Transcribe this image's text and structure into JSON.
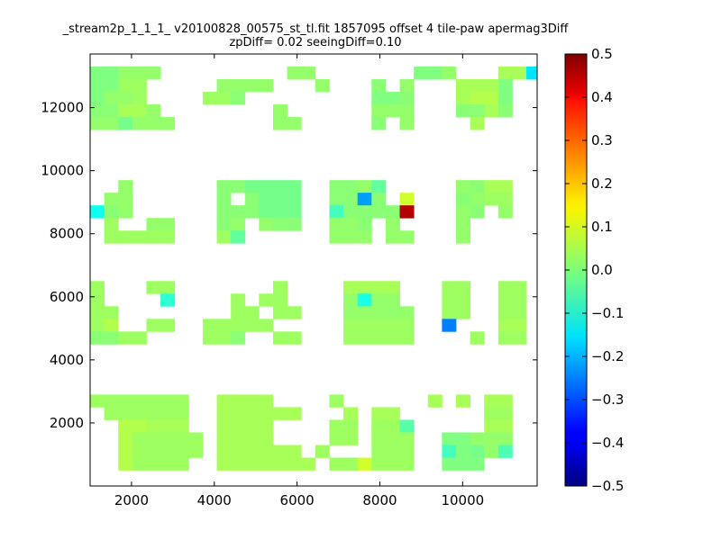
{
  "chart_data": {
    "type": "heatmap",
    "title": "_stream2p_1_1_1_ v20100828_00575_st_tl.fit 1857095 offset 4 tile-paw apermag3Diff",
    "subtitle": "zpDiff= 0.02 seeingDiff=0.10",
    "xlim": [
      1000,
      11800
    ],
    "ylim": [
      0,
      13700
    ],
    "xticks": [
      2000,
      4000,
      6000,
      8000,
      10000
    ],
    "yticks": [
      2000,
      4000,
      6000,
      8000,
      10000,
      12000
    ],
    "colorbar": {
      "min": -0.5,
      "max": 0.5,
      "ticks": [
        0.5,
        0.4,
        0.3,
        0.2,
        0.1,
        0.0,
        -0.1,
        -0.2,
        -0.3,
        -0.4,
        -0.5
      ],
      "tick_labels": [
        "0.5",
        "0.4",
        "0.3",
        "0.2",
        "0.1",
        "0.0",
        "−0.1",
        "−0.2",
        "−0.3",
        "−0.4",
        "−0.5"
      ],
      "colormap": "jet"
    },
    "cell_size": [
      340,
      400
    ],
    "x_origin": 1000,
    "y_top": 13700,
    "grid_rows": [
      ". . . . . . . . . . . . . . . . . . . . . . . . . . . . . . . . ",
      "0.000 0.000 0.020 0.020 0.020 . . . . . . . . . 0.020 0.020 . . . . . . . 0.000 0.000 0.020 . . . 0.040 0.040 -0.150",
      "0.000 0.000 0.030 0.030 . . . . . 0.020 0.020 0.020 0.020 . . . 0.020 . . . 0.010 . 0.020 . . . 0.040 0.040 0.040 0.000",
      "0.000 0.020 0.020 0.030 . . . . 0.030 0.030 0.010 . . . . . . . . . 0.000 0.000 0.010 . . . 0.040 0.050 0.050 0.000",
      "0.010 0.010 0.040 0.040 0.020 . . . . . . . . 0.020 . . . . . . 0.020 0.020 0.020 . . . 0.010 0.010 0.040 0.010",
      "0.020 0.020 -0.010 0.020 0.020 0.020 . . . . . . . 0.020 0.020 . . . . . 0.010 . 0.020 . . . . 0.040 . .",
      ". . . . . . . . . . . . . . . . . . . . . . . . . . . . . . . ",
      ". . . . . . . . . . . . . . . . . . . . . . . . . . . . . . . ",
      ". . . . . . . . . . . . . . . . . . . . . . . . . . . . . . . ",
      ". . . . . . . . . . . . . . . . . . . . . . . . . . . . . . . ",
      ". . 0.020 . . . . . . 0.010 0.010 -0.010 -0.010 -0.010 -0.010 . . 0.010 0.010 0.020 -0.030 . . . . . 0.020 0.010 0.040 0.040",
      ". 0.020 0.020 . . . . . . 0.010 . 0.010 -0.010 -0.010 -0.010 . . 0.010 0.010 -0.220 0.010 . 0.080 . . . 0.010 0.020 0.030 0.030",
      "-0.110 0.010 0.020 . . . . . . 0.010 0.010 0.010 -0.010 -0.010 -0.010 . . -0.060 0.010 0.010 0.010 0.010 0.450 . . . 0.020 0.010 . 0.020",
      ". 0.030 . . 0.020 0.020 . . . 0.010 0.020 . 0.020 0.010 0.010 . . 0.020 0.020 0.010 . 0.020 . . . . 0.020 . . .",
      ". 0.030 0.030 0.030 0.030 0.030 . . . 0.030 -0.030 . . . . . . 0.020 0.020 0.020 . 0.020 0.020 . . . 0.020 . . .",
      ". . . . . . . . . . . . . . . . . . . . . . . . . . . . . . . ",
      ". . . . . . . . . . . . . . . . . . . . . . . . . . . . . . . ",
      ". . . . . . . . . . . . . . . . . . . . . . . . . . . . . . . ",
      "0.030 . . . 0.030 0.030 . . . . . . . 0.030 . . . . 0.040 0.040 0.040 0.040 . . . 0.030 0.030 . . 0.030 0.030",
      "0.030 . . . . -0.080 . . . . 0.030 . 0.030 0.030 . . . . 0.020 -0.100 0.020 0.020 . . . 0.030 0.030 . . 0.030 0.030",
      "0.030 0.030 . . . . . . . . 0.030 0.030 . 0.030 0.030 . . . 0.020 0.020 0.020 0.020 0.020 . . 0.030 0.030 . . 0.030 0.030",
      "0.030 0.050 . . 0.030 0.030 . . 0.030 0.030 0.030 0.030 0.030 . . . . . 0.030 0.030 0.030 0.030 0.030 . . -0.250 . . . 0.040 0.040",
      "0.010 0.010 0.030 0.030 . . . . 0.030 0.030 0.010 . . 0.030 0.030 . . . 0.030 0.030 0.030 0.030 0.030 . . . . 0.030 . 0.030 0.030",
      ". . . . . . . . . . . . . . . . . . . . . . . . . . . . . . . ",
      ". . . . . . . . . . . . . . . . . . . . . . . . . . . . . . . ",
      ". . . . . . . . . . . . . . . . . . . . . . . . . . . . . . . ",
      ". . . . . . . . . . . . . . . . . . . . . . . . . . . . . . . ",
      "0.030 0.030 0.030 0.030 0.030 0.030 0.030 . . 0.040 0.040 0.040 0.040 . . . . 0.030 . . . . . . 0.040 . 0.040 . 0.040 0.040",
      ". 0.030 0.030 0.030 0.030 0.030 0.030 . . 0.040 0.040 0.040 0.040 0.040 0.040 . . . 0.040 . 0.040 0.040 . . . . . . 0.030 0.030",
      ". . 0.050 0.050 0.040 0.040 0.040 . . 0.040 0.040 0.040 0.040 . . . . 0.030 0.030 . 0.030 0.030 -0.040 . . . . . 0.040 0.040",
      ". . 0.050 0.030 0.030 0.030 0.030 0.030 . 0.040 0.040 0.040 0.040 . . . . 0.030 0.030 . 0.030 0.030 0.030 . . 0.000 0.000 0.020 0.020 0.020",
      ". . 0.050 0.030 0.030 0.030 0.030 0.030 . 0.040 0.040 0.040 0.040 0.040 0.040 . 0.030 . . . 0.030 0.030 0.030 . . -0.060 0.000 -0.010 0.020 -0.050",
      ". . 0.050 0.030 0.030 0.030 0.030 . . 0.040 0.040 0.040 0.040 0.040 0.040 0.040 . 0.030 0.030 0.080 0.030 0.030 0.030 . . 0.000 0.000 0.000 . ."
    ]
  }
}
